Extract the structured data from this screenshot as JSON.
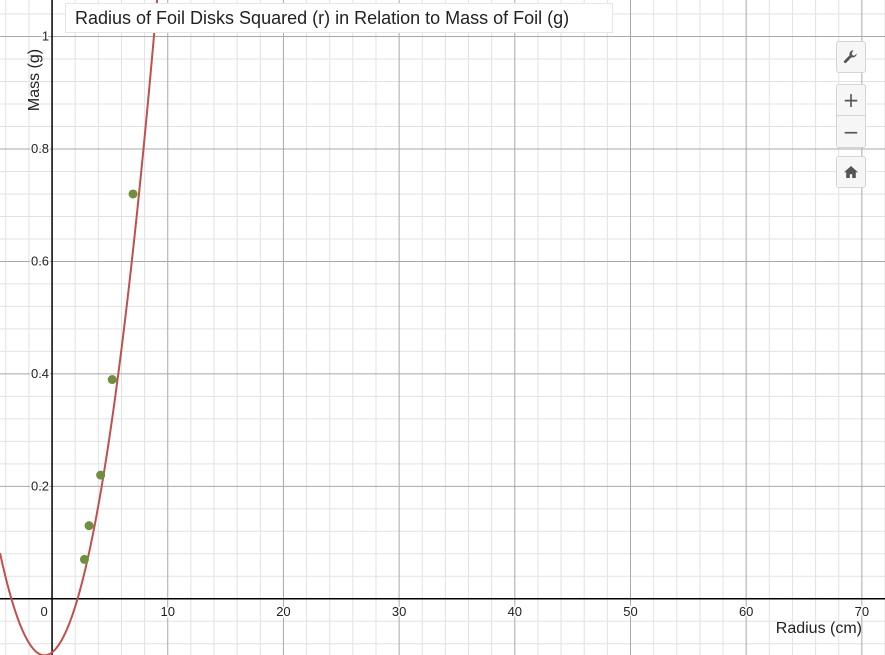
{
  "chart_data": {
    "type": "scatter",
    "title": "Radius of Foil Disks Squared (r) in Relation to Mass of Foil (g)",
    "xlabel": "Radius (cm)",
    "ylabel": "Mass (g)",
    "xlim": [
      -4.5,
      72
    ],
    "ylim": [
      -0.1,
      1.065
    ],
    "x_ticks": [
      "0",
      "10",
      "20",
      "30",
      "40",
      "50",
      "60",
      "70"
    ],
    "y_ticks": [
      "0.2",
      "0.4",
      "0.6",
      "0.8",
      "1"
    ],
    "grid": true,
    "points": [
      {
        "x": 2.8,
        "y": 0.07
      },
      {
        "x": 3.2,
        "y": 0.13
      },
      {
        "x": 4.2,
        "y": 0.22
      },
      {
        "x": 5.2,
        "y": 0.39
      },
      {
        "x": 7.0,
        "y": 0.72
      }
    ],
    "fit_curve": {
      "type": "quadratic",
      "a": 0.0123,
      "b": 0.0161,
      "c": -0.0953
    },
    "colors": {
      "point": "#6e8f3f",
      "curve": "#c0504d",
      "major_grid": "#a8a8a8",
      "minor_grid": "#e2e2e2",
      "axis": "#000000"
    }
  },
  "toolbar": {
    "icons": [
      "wrench-icon",
      "plus-icon",
      "minus-icon",
      "home-icon"
    ]
  }
}
